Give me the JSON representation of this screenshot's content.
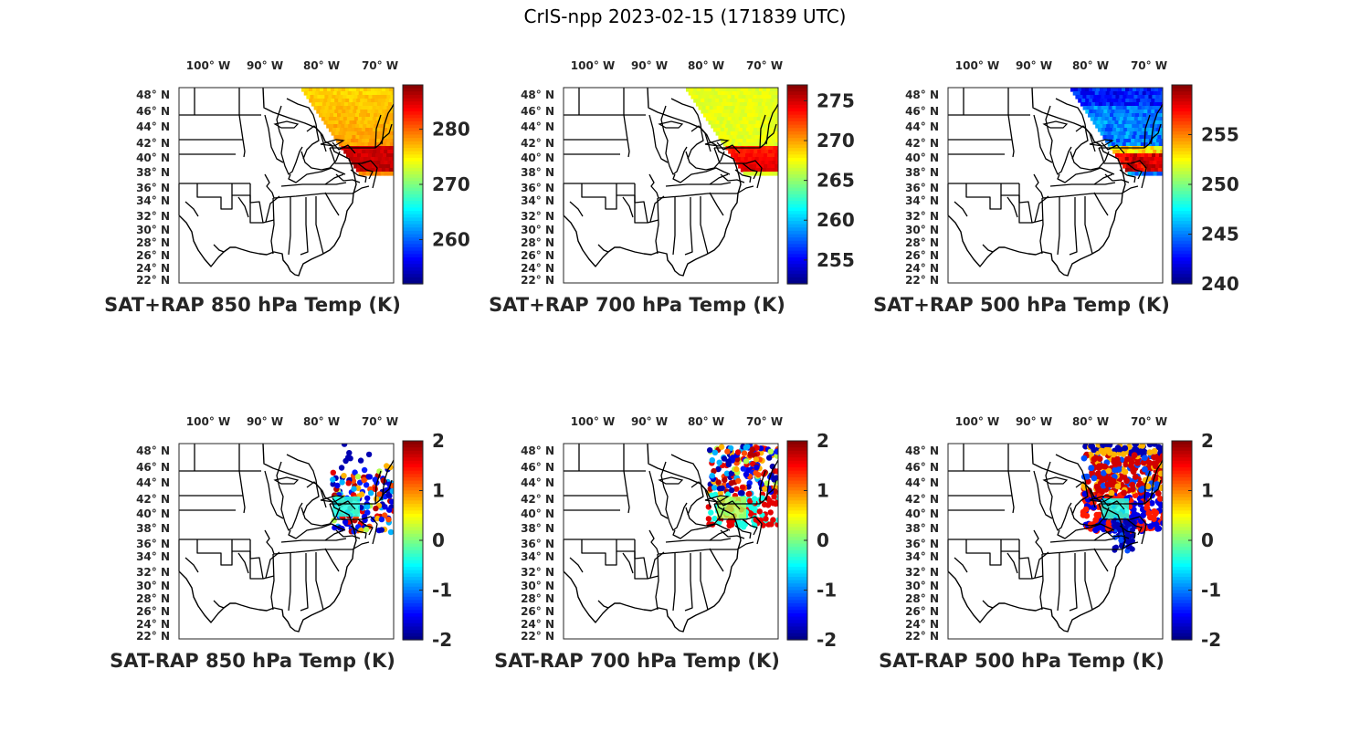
{
  "title": "CrIS-npp 2023-02-15 (171839 UTC)",
  "lon_labels": [
    "100° W",
    "90° W",
    "80° W",
    "70° W"
  ],
  "lat_labels": [
    "48° N",
    "46° N",
    "44° N",
    "42° N",
    "40° N",
    "38° N",
    "36° N",
    "34° N",
    "32° N",
    "30° N",
    "28° N",
    "26° N",
    "24° N",
    "22° N"
  ],
  "colormap": "jet",
  "colors": {
    "axis": "#262626",
    "map_lines": "#000000"
  },
  "panels": [
    {
      "title": "SAT+RAP 850 hPa Temp (K)",
      "cbar_ticks": [
        "280",
        "270",
        "260"
      ],
      "cbar_tick_values": [
        280,
        270,
        260
      ],
      "clim": [
        252,
        288
      ],
      "field": "swath"
    },
    {
      "title": "SAT+RAP 700 hPa Temp (K)",
      "cbar_ticks": [
        "275",
        "270",
        "265",
        "260",
        "255"
      ],
      "cbar_tick_values": [
        275,
        270,
        265,
        260,
        255
      ],
      "clim": [
        252,
        277
      ],
      "field": "swath"
    },
    {
      "title": "SAT+RAP 500 hPa Temp (K)",
      "cbar_ticks": [
        "255",
        "250",
        "245",
        "240"
      ],
      "cbar_tick_values": [
        255,
        250,
        245,
        240
      ],
      "clim": [
        240,
        260
      ],
      "field": "swath"
    },
    {
      "title": "SAT-RAP 850 hPa Temp (K)",
      "cbar_ticks": [
        "2",
        "1",
        "0",
        "-1",
        "-2"
      ],
      "cbar_tick_values": [
        2,
        1,
        0,
        -1,
        -2
      ],
      "clim": [
        -2,
        2
      ],
      "field": "diff"
    },
    {
      "title": "SAT-RAP 700 hPa Temp (K)",
      "cbar_ticks": [
        "2",
        "1",
        "0",
        "-1",
        "-2"
      ],
      "cbar_tick_values": [
        2,
        1,
        0,
        -1,
        -2
      ],
      "clim": [
        -2,
        2
      ],
      "field": "diff"
    },
    {
      "title": "SAT-RAP 500 hPa Temp (K)",
      "cbar_ticks": [
        "2",
        "1",
        "0",
        "-1",
        "-2"
      ],
      "cbar_tick_values": [
        2,
        1,
        0,
        -1,
        -2
      ],
      "clim": [
        -2,
        2
      ],
      "field": "diff"
    }
  ]
}
